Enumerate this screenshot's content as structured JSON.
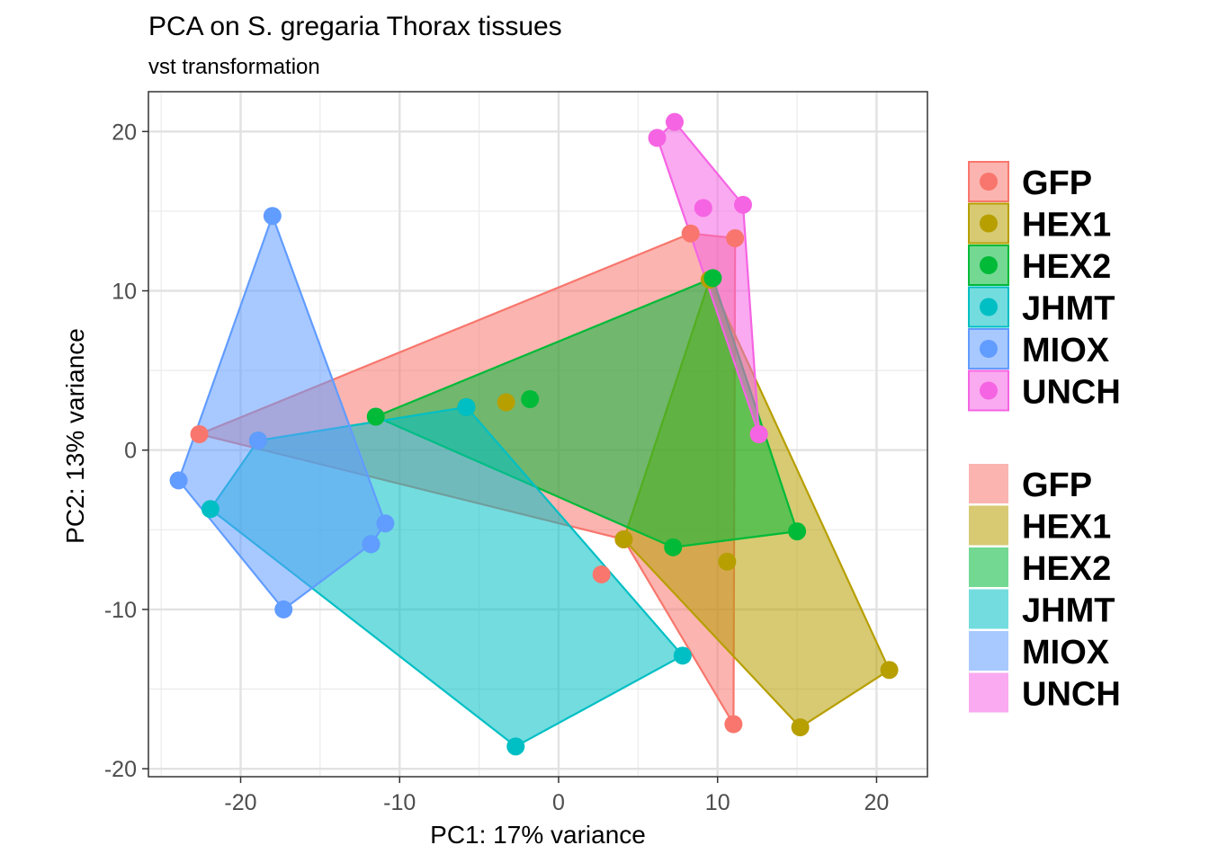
{
  "chart_data": {
    "type": "scatter",
    "title": "PCA on S. gregaria Thorax tissues",
    "subtitle": "vst transformation",
    "xlabel": "PC1: 17% variance",
    "ylabel": "PC2: 13% variance",
    "xlim": [
      -25.8,
      23.2
    ],
    "ylim": [
      -20.5,
      22.5
    ],
    "xticks": [
      -20,
      -10,
      0,
      10,
      20
    ],
    "yticks": [
      -20,
      -10,
      0,
      10,
      20
    ],
    "xtick_labels": [
      "-20",
      "-10",
      "0",
      "10",
      "20"
    ],
    "ytick_labels": [
      "-20",
      "-10",
      "0",
      "10",
      "20"
    ],
    "grid": true,
    "legend_position": "right",
    "series": [
      {
        "name": "GFP",
        "color": "#F8766D",
        "points": [
          [
            -22.6,
            1.0
          ],
          [
            8.3,
            13.6
          ],
          [
            11.1,
            13.3
          ],
          [
            12.6,
            1.0
          ],
          [
            4.1,
            -5.6
          ],
          [
            2.7,
            -7.8
          ],
          [
            11.0,
            -17.2
          ]
        ],
        "hull": [
          0,
          1,
          2,
          6,
          4
        ]
      },
      {
        "name": "HEX1",
        "color": "#B79F00",
        "points": [
          [
            9.5,
            10.7
          ],
          [
            -3.3,
            3.0
          ],
          [
            4.1,
            -5.6
          ],
          [
            10.6,
            -7.0
          ],
          [
            20.8,
            -13.8
          ],
          [
            15.2,
            -17.4
          ]
        ],
        "hull": [
          0,
          4,
          5,
          2
        ]
      },
      {
        "name": "HEX2",
        "color": "#00BA38",
        "points": [
          [
            9.7,
            10.8
          ],
          [
            -1.8,
            3.2
          ],
          [
            -5.8,
            2.7
          ],
          [
            -11.5,
            2.1
          ],
          [
            7.2,
            -6.1
          ],
          [
            15.0,
            -5.1
          ]
        ],
        "hull": [
          0,
          5,
          4,
          3
        ]
      },
      {
        "name": "JHMT",
        "color": "#00BFC4",
        "points": [
          [
            -5.8,
            2.7
          ],
          [
            -18.9,
            0.6
          ],
          [
            -21.9,
            -3.7
          ],
          [
            -11.8,
            -5.9
          ],
          [
            -2.7,
            -18.6
          ],
          [
            7.8,
            -12.9
          ]
        ],
        "hull": [
          0,
          5,
          4,
          2,
          1
        ]
      },
      {
        "name": "MIOX",
        "color": "#619CFF",
        "points": [
          [
            -18.0,
            14.7
          ],
          [
            -23.9,
            -1.9
          ],
          [
            -17.3,
            -10.0
          ],
          [
            -11.8,
            -5.9
          ],
          [
            -10.9,
            -4.6
          ],
          [
            -18.9,
            0.6
          ]
        ],
        "hull": [
          0,
          4,
          3,
          2,
          1
        ]
      },
      {
        "name": "UNCH",
        "color": "#F564E3",
        "points": [
          [
            6.2,
            19.6
          ],
          [
            7.3,
            20.6
          ],
          [
            11.6,
            15.4
          ],
          [
            9.1,
            15.2
          ],
          [
            12.6,
            1.0
          ]
        ],
        "hull": [
          1,
          2,
          4,
          0
        ]
      }
    ],
    "legend_points_title": "",
    "legend_fill_title": ""
  }
}
